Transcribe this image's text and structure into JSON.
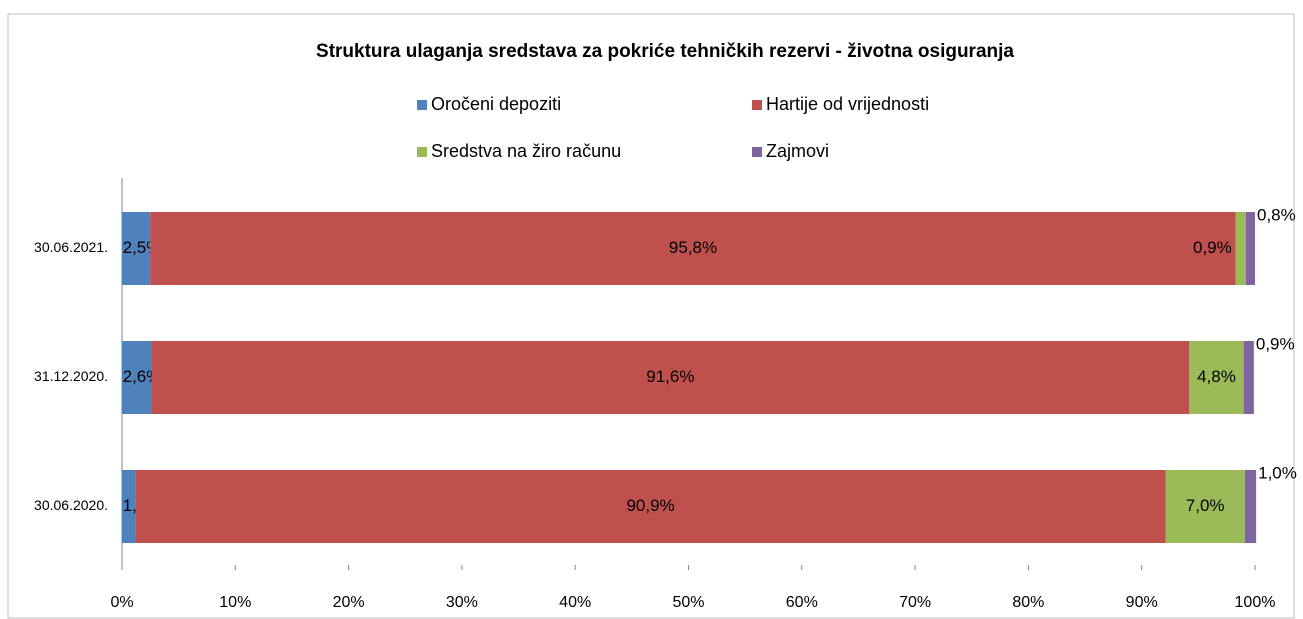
{
  "chart_data": {
    "type": "stacked_barh",
    "title": "Struktura ulaganja sredstava za pokriće tehničkih rezervi - životna osiguranja",
    "categories": [
      "30.06.2021.",
      "31.12.2020.",
      "30.06.2020."
    ],
    "series": [
      {
        "name": "Oročeni depoziti",
        "color": "#4f81bd",
        "values": [
          2.5,
          2.6,
          1.2
        ],
        "value_labels": [
          "2,5%",
          "2,6%",
          "1,2%"
        ]
      },
      {
        "name": "Hartije od vrijednosti",
        "color": "#c0504d",
        "values": [
          95.8,
          91.6,
          90.9
        ],
        "value_labels": [
          "95,8%",
          "91,6%",
          "90,9%"
        ]
      },
      {
        "name": "Sredstva na žiro računu",
        "color": "#9bbb59",
        "values": [
          0.9,
          4.8,
          7.0
        ],
        "value_labels": [
          "0,9%",
          "4,8%",
          "7,0%"
        ]
      },
      {
        "name": "Zajmovi",
        "color": "#8064a2",
        "values": [
          0.8,
          0.9,
          1.0
        ],
        "value_labels": [
          "0,8%",
          "0,9%",
          "1,0%"
        ]
      }
    ],
    "xlim": [
      0,
      100
    ],
    "xticks": [
      {
        "value": 0,
        "label": "0%"
      },
      {
        "value": 10,
        "label": "10%"
      },
      {
        "value": 20,
        "label": "20%"
      },
      {
        "value": 30,
        "label": "30%"
      },
      {
        "value": 40,
        "label": "40%"
      },
      {
        "value": 50,
        "label": "50%"
      },
      {
        "value": 60,
        "label": "60%"
      },
      {
        "value": 70,
        "label": "70%"
      },
      {
        "value": 80,
        "label": "80%"
      },
      {
        "value": 90,
        "label": "90%"
      },
      {
        "value": 100,
        "label": "100%"
      }
    ]
  }
}
